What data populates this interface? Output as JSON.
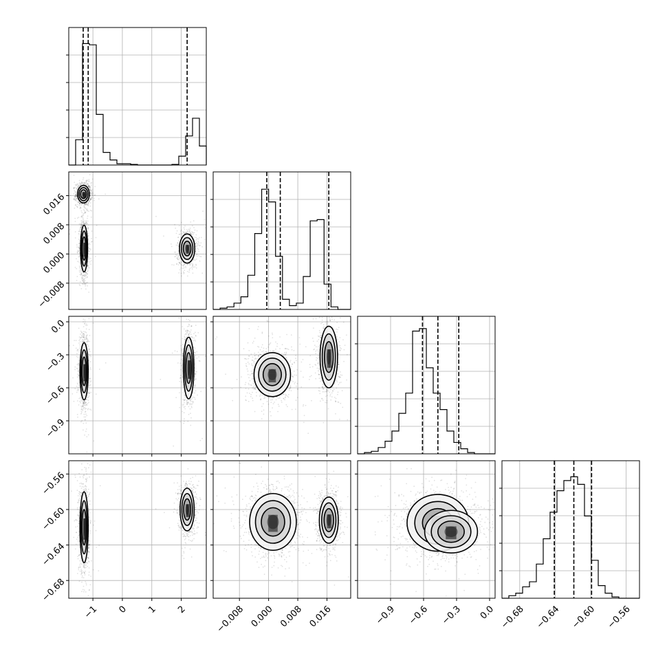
{
  "chart_data": {
    "type": "corner",
    "description_note": "",
    "parameters": [
      {
        "range": [
          -1.82,
          2.85
        ],
        "ticks": [
          -1,
          0,
          1,
          2
        ],
        "tick_labels": [
          "−1",
          "0",
          "1",
          "2"
        ],
        "quantiles": [
          -1.33,
          -1.16,
          2.2
        ],
        "hist": {
          "edges_start": -1.82,
          "bin_width": 0.2335,
          "values": [
            0.0,
            0.2,
            0.96,
            0.95,
            0.4,
            0.1,
            0.04,
            0.01,
            0.01,
            0.005,
            0.0,
            0.0,
            0.0,
            0.0,
            0.0,
            0.005,
            0.07,
            0.23,
            0.37,
            0.15,
            0.0
          ],
          "ymax": 1.0
        }
      },
      {
        "range": [
          -0.0152,
          0.0225
        ],
        "ticks": [
          -0.008,
          0.0,
          0.008,
          0.016
        ],
        "tick_labels": [
          "−0.008",
          "0.000",
          "0.008",
          "0.016"
        ],
        "quantiles": [
          -0.0005,
          0.0032,
          0.0165
        ],
        "hist": {
          "edges_start": -0.0152,
          "bin_width": 0.0019,
          "values": [
            0.0,
            0.01,
            0.02,
            0.05,
            0.1,
            0.27,
            0.6,
            0.95,
            0.85,
            0.42,
            0.08,
            0.03,
            0.05,
            0.26,
            0.7,
            0.71,
            0.2,
            0.02,
            0.0,
            0.0
          ],
          "ymax": 1.0
        }
      },
      {
        "range": [
          -1.2,
          0.05
        ],
        "ticks": [
          -0.9,
          -0.6,
          -0.3,
          0.0
        ],
        "tick_labels": [
          "−0.9",
          "−0.6",
          "−0.3",
          "0.0"
        ],
        "quantiles": [
          -0.61,
          -0.47,
          -0.28
        ],
        "hist": {
          "edges_start": -1.2,
          "bin_width": 0.0625,
          "values": [
            0.0,
            0.01,
            0.02,
            0.05,
            0.1,
            0.18,
            0.32,
            0.48,
            0.97,
            0.99,
            0.68,
            0.48,
            0.35,
            0.18,
            0.09,
            0.04,
            0.01,
            0.0,
            0.0,
            0.0
          ],
          "ymax": 1.0
        }
      },
      {
        "range": [
          -0.7,
          -0.545
        ],
        "ticks": [
          -0.68,
          -0.64,
          -0.6,
          -0.56
        ],
        "tick_labels": [
          "−0.68",
          "−0.64",
          "−0.60",
          "−0.56"
        ],
        "quantiles": [
          -0.641,
          -0.619,
          -0.599
        ],
        "hist": {
          "edges_start": -0.7,
          "bin_width": 0.00775,
          "values": [
            0.0,
            0.02,
            0.04,
            0.09,
            0.13,
            0.27,
            0.47,
            0.68,
            0.85,
            0.93,
            0.96,
            0.9,
            0.65,
            0.3,
            0.1,
            0.04,
            0.01,
            0.0,
            0.0,
            0.0
          ],
          "ymax": 1.0
        }
      }
    ],
    "pairs": [
      {
        "row": 1,
        "col": 0,
        "clusters": [
          {
            "cx": -1.32,
            "cy": 0.0164,
            "sx": 0.1,
            "sy": 0.0012,
            "weight": 1.0
          },
          {
            "cx": -1.3,
            "cy": 0.0015,
            "sx": 0.06,
            "sy": 0.0032,
            "weight": 1.0
          },
          {
            "cx": 2.2,
            "cy": 0.0015,
            "sx": 0.13,
            "sy": 0.002,
            "weight": 0.75
          }
        ]
      },
      {
        "row": 2,
        "col": 0,
        "clusters": [
          {
            "cx": -1.3,
            "cy": -0.45,
            "sx": 0.07,
            "sy": 0.13,
            "weight": 1.0
          },
          {
            "cx": 2.25,
            "cy": -0.42,
            "sx": 0.09,
            "sy": 0.14,
            "weight": 0.75
          }
        ]
      },
      {
        "row": 3,
        "col": 0,
        "clusters": [
          {
            "cx": -1.3,
            "cy": -0.62,
            "sx": 0.07,
            "sy": 0.02,
            "weight": 1.0
          },
          {
            "cx": 2.2,
            "cy": -0.6,
            "sx": 0.12,
            "sy": 0.012,
            "weight": 0.75
          }
        ]
      },
      {
        "row": 2,
        "col": 1,
        "clusters": [
          {
            "cx": 0.001,
            "cy": -0.48,
            "sx": 0.0025,
            "sy": 0.1,
            "weight": 1.0
          },
          {
            "cx": 0.0165,
            "cy": -0.32,
            "sx": 0.0012,
            "sy": 0.14,
            "weight": 0.75
          }
        ]
      },
      {
        "row": 3,
        "col": 1,
        "clusters": [
          {
            "cx": 0.0012,
            "cy": -0.614,
            "sx": 0.0032,
            "sy": 0.016,
            "weight": 1.0
          },
          {
            "cx": 0.0165,
            "cy": -0.612,
            "sx": 0.0013,
            "sy": 0.013,
            "weight": 0.75
          }
        ]
      },
      {
        "row": 3,
        "col": 2,
        "clusters": [
          {
            "cx": -0.47,
            "cy": -0.615,
            "sx": 0.14,
            "sy": 0.016,
            "weight": 1.0
          },
          {
            "cx": -0.35,
            "cy": -0.625,
            "sx": 0.12,
            "sy": 0.012,
            "weight": 0.45
          }
        ]
      }
    ],
    "grid": true,
    "line_color": "#000000",
    "grid_color": "#b0b0b0",
    "scatter_color": "#000000"
  }
}
